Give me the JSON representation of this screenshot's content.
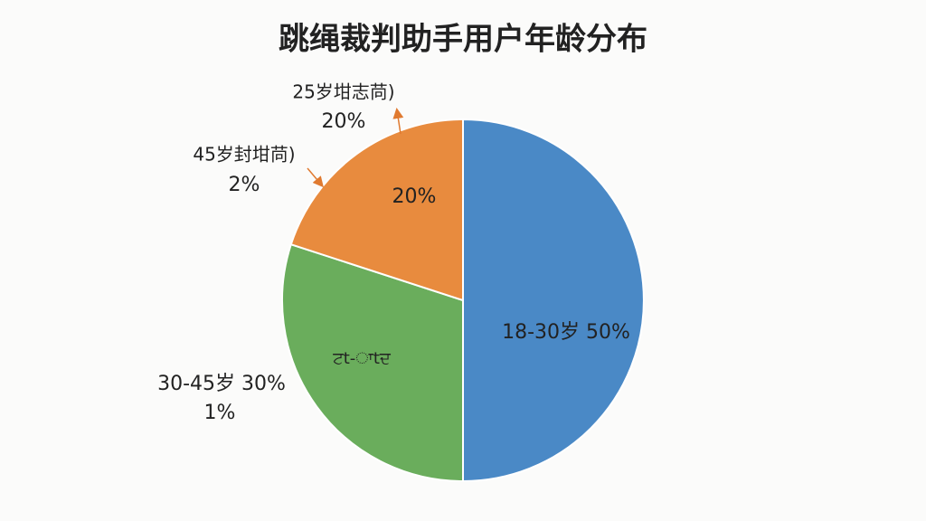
{
  "chart_data": {
    "type": "pie",
    "title": "跳绳裁判助手用户年龄分布",
    "values": [
      50,
      30,
      20
    ],
    "colors": [
      "#4a89c6",
      "#6aad5c",
      "#e88b3e"
    ],
    "labels": [
      "18-30岁 50%",
      "ਟt-ਾtਦ",
      "20%"
    ],
    "annotations": [
      {
        "text": "25岁坩志苘)",
        "sub": "20%"
      },
      {
        "text": "45岁封坩苘)",
        "sub": "2%"
      },
      {
        "text": "30-45岁 30%",
        "sub": "1%"
      }
    ]
  }
}
